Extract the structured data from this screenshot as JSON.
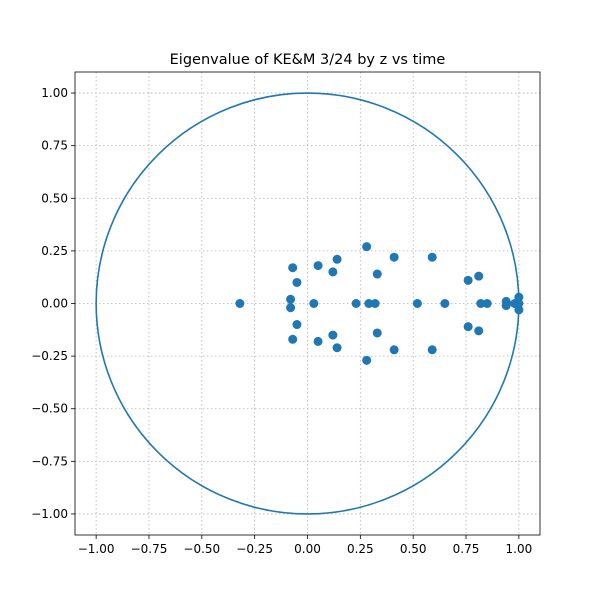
{
  "chart_data": {
    "type": "scatter",
    "title": "Eigenvalue of KE&M 3/24 by z vs time",
    "xlabel": "",
    "ylabel": "",
    "xlim": [
      -1.1,
      1.1
    ],
    "ylim": [
      -1.1,
      1.1
    ],
    "xticks": [
      -1.0,
      -0.75,
      -0.5,
      -0.25,
      0.0,
      0.25,
      0.5,
      0.75,
      1.0
    ],
    "yticks": [
      -1.0,
      -0.75,
      -0.5,
      -0.25,
      0.0,
      0.25,
      0.5,
      0.75,
      1.0
    ],
    "xtick_labels": [
      "−1.00",
      "−0.75",
      "−0.50",
      "−0.25",
      "0.00",
      "0.25",
      "0.50",
      "0.75",
      "1.00"
    ],
    "ytick_labels": [
      "−1.00",
      "−0.75",
      "−0.50",
      "−0.25",
      "0.00",
      "0.25",
      "0.50",
      "0.75",
      "1.00"
    ],
    "grid": true,
    "series": [
      {
        "kind": "circle",
        "values": {
          "center": [
            0,
            0
          ],
          "radius": 1.0
        },
        "color": "#1f77b4"
      },
      {
        "kind": "points",
        "color": "#1f77b4",
        "points": [
          [
            -0.32,
            0.0
          ],
          [
            -0.07,
            0.17
          ],
          [
            -0.07,
            -0.17
          ],
          [
            -0.08,
            0.02
          ],
          [
            -0.08,
            -0.02
          ],
          [
            -0.05,
            0.1
          ],
          [
            -0.05,
            -0.1
          ],
          [
            0.03,
            0.0
          ],
          [
            0.05,
            0.18
          ],
          [
            0.05,
            -0.18
          ],
          [
            0.12,
            0.15
          ],
          [
            0.12,
            -0.15
          ],
          [
            0.14,
            0.21
          ],
          [
            0.14,
            -0.21
          ],
          [
            0.23,
            0.0
          ],
          [
            0.28,
            0.27
          ],
          [
            0.28,
            -0.27
          ],
          [
            0.29,
            0.0
          ],
          [
            0.32,
            0.0
          ],
          [
            0.33,
            0.14
          ],
          [
            0.33,
            -0.14
          ],
          [
            0.41,
            0.22
          ],
          [
            0.41,
            -0.22
          ],
          [
            0.52,
            0.0
          ],
          [
            0.59,
            0.22
          ],
          [
            0.59,
            -0.22
          ],
          [
            0.65,
            0.0
          ],
          [
            0.76,
            0.11
          ],
          [
            0.76,
            -0.11
          ],
          [
            0.81,
            0.13
          ],
          [
            0.81,
            -0.13
          ],
          [
            0.82,
            0.0
          ],
          [
            0.85,
            0.0
          ],
          [
            0.94,
            0.01
          ],
          [
            0.94,
            -0.01
          ],
          [
            0.98,
            0.0
          ],
          [
            1.0,
            0.03
          ],
          [
            1.0,
            -0.03
          ],
          [
            1.0,
            0.0
          ]
        ]
      }
    ]
  }
}
